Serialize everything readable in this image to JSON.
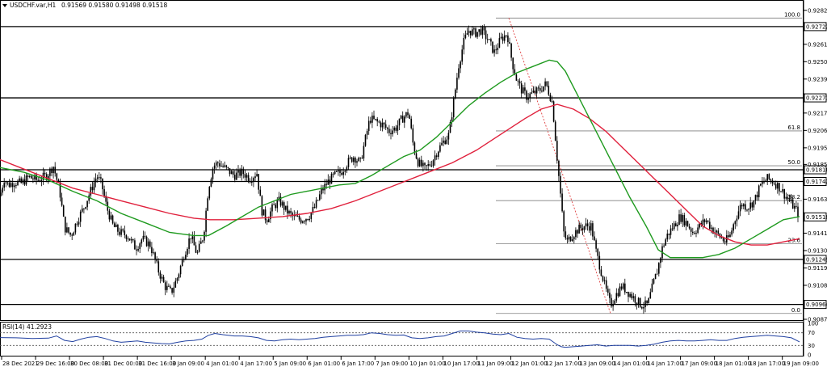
{
  "header": {
    "symbol": "USDCHF.var,H1",
    "ohlc": "0.91569 0.91580 0.91498 0.91518"
  },
  "rsi_header": "RSI(14) 41.2923",
  "chart_data": {
    "type": "candlestick",
    "symbol": "USDCHF.var",
    "timeframe": "H1",
    "ylim": [
      0.9087,
      0.9288
    ],
    "price_ticks": [
      "0.92825",
      "0.92610",
      "0.92500",
      "0.92390",
      "0.92175",
      "0.92065",
      "0.91955",
      "0.91850",
      "0.91630",
      "0.91415",
      "0.91305",
      "0.91195",
      "0.91085",
      "0.90870"
    ],
    "time_labels": [
      "28 Dec 2021",
      "29 Dec 16:00",
      "30 Dec 08:00",
      "31 Dec 00:00",
      "31 Dec 16:00",
      "3 Jan 09:00",
      "4 Jan 01:00",
      "4 Jan 17:00",
      "5 Jan 09:00",
      "6 Jan 01:00",
      "6 Jan 17:00",
      "7 Jan 09:00",
      "10 Jan 01:00",
      "10 Jan 17:00",
      "11 Jan 09:00",
      "12 Jan 01:00",
      "12 Jan 17:00",
      "13 Jan 09:00",
      "14 Jan 01:00",
      "14 Jan 17:00",
      "17 Jan 09:00",
      "18 Jan 01:00",
      "18 Jan 17:00",
      "19 Jan 09:00"
    ],
    "horizontal_levels": [
      {
        "price": 0.92722,
        "label": "0.92722"
      },
      {
        "price": 0.92271,
        "label": "0.92271"
      },
      {
        "price": 0.91816,
        "label": "0.91816"
      },
      {
        "price": 0.91742,
        "label": "0.91742"
      },
      {
        "price": 0.91249,
        "label": "0.91249"
      },
      {
        "price": 0.90964,
        "label": "0.90964"
      }
    ],
    "current_price": {
      "price": 0.91518,
      "label": "0.91518"
    },
    "fibonacci": {
      "high": 0.92776,
      "low": 0.90907,
      "levels": [
        {
          "ratio": 1.0,
          "label": "100.0"
        },
        {
          "ratio": 0.618,
          "label": "61.8"
        },
        {
          "ratio": 0.5,
          "label": "50.0"
        },
        {
          "ratio": 0.382,
          "label": "38.2"
        },
        {
          "ratio": 0.236,
          "label": "23.6"
        },
        {
          "ratio": 0.0,
          "label": "0.0"
        }
      ]
    },
    "price_path": [
      [
        0,
        0.9165
      ],
      [
        5,
        0.9176
      ],
      [
        10,
        0.9172
      ],
      [
        18,
        0.9174
      ],
      [
        26,
        0.9173
      ],
      [
        36,
        0.9177
      ],
      [
        46,
        0.9175
      ],
      [
        58,
        0.9178
      ],
      [
        66,
        0.9184
      ],
      [
        74,
        0.9168
      ],
      [
        80,
        0.9145
      ],
      [
        88,
        0.914
      ],
      [
        96,
        0.915
      ],
      [
        104,
        0.9158
      ],
      [
        112,
        0.9168
      ],
      [
        120,
        0.9178
      ],
      [
        126,
        0.9172
      ],
      [
        132,
        0.9158
      ],
      [
        140,
        0.9146
      ],
      [
        148,
        0.9142
      ],
      [
        158,
        0.914
      ],
      [
        168,
        0.9132
      ],
      [
        176,
        0.9138
      ],
      [
        186,
        0.9134
      ],
      [
        196,
        0.9118
      ],
      [
        204,
        0.9108
      ],
      [
        212,
        0.9104
      ],
      [
        220,
        0.9114
      ],
      [
        228,
        0.9128
      ],
      [
        236,
        0.914
      ],
      [
        244,
        0.9128
      ],
      [
        252,
        0.914
      ],
      [
        258,
        0.917
      ],
      [
        264,
        0.9184
      ],
      [
        270,
        0.9186
      ],
      [
        280,
        0.9182
      ],
      [
        290,
        0.9178
      ],
      [
        300,
        0.918
      ],
      [
        310,
        0.9176
      ],
      [
        318,
        0.918
      ],
      [
        324,
        0.9156
      ],
      [
        330,
        0.915
      ],
      [
        338,
        0.9158
      ],
      [
        346,
        0.9162
      ],
      [
        354,
        0.9156
      ],
      [
        362,
        0.9152
      ],
      [
        372,
        0.915
      ],
      [
        382,
        0.9152
      ],
      [
        390,
        0.9158
      ],
      [
        398,
        0.9168
      ],
      [
        406,
        0.9174
      ],
      [
        414,
        0.9178
      ],
      [
        422,
        0.918
      ],
      [
        430,
        0.9186
      ],
      [
        438,
        0.919
      ],
      [
        446,
        0.9186
      ],
      [
        452,
        0.92
      ],
      [
        458,
        0.9214
      ],
      [
        466,
        0.9212
      ],
      [
        474,
        0.921
      ],
      [
        482,
        0.9206
      ],
      [
        490,
        0.9208
      ],
      [
        498,
        0.9214
      ],
      [
        506,
        0.9218
      ],
      [
        512,
        0.9196
      ],
      [
        518,
        0.9186
      ],
      [
        526,
        0.9182
      ],
      [
        534,
        0.9186
      ],
      [
        542,
        0.9194
      ],
      [
        550,
        0.92
      ],
      [
        556,
        0.9204
      ],
      [
        562,
        0.9226
      ],
      [
        568,
        0.9248
      ],
      [
        574,
        0.9262
      ],
      [
        580,
        0.927
      ],
      [
        588,
        0.9268
      ],
      [
        596,
        0.927
      ],
      [
        604,
        0.9264
      ],
      [
        612,
        0.9256
      ],
      [
        620,
        0.9264
      ],
      [
        628,
        0.9268
      ],
      [
        634,
        0.925
      ],
      [
        640,
        0.9238
      ],
      [
        646,
        0.9232
      ],
      [
        652,
        0.9228
      ],
      [
        660,
        0.923
      ],
      [
        668,
        0.9232
      ],
      [
        676,
        0.9236
      ],
      [
        684,
        0.9224
      ],
      [
        690,
        0.9188
      ],
      [
        694,
        0.9166
      ],
      [
        698,
        0.9142
      ],
      [
        702,
        0.9136
      ],
      [
        708,
        0.914
      ],
      [
        716,
        0.9144
      ],
      [
        724,
        0.9146
      ],
      [
        732,
        0.9146
      ],
      [
        738,
        0.913
      ],
      [
        744,
        0.9118
      ],
      [
        750,
        0.9106
      ],
      [
        756,
        0.9096
      ],
      [
        762,
        0.9102
      ],
      [
        770,
        0.9108
      ],
      [
        778,
        0.9104
      ],
      [
        786,
        0.91
      ],
      [
        794,
        0.9096
      ],
      [
        802,
        0.9096
      ],
      [
        808,
        0.9108
      ],
      [
        814,
        0.9118
      ],
      [
        820,
        0.9132
      ],
      [
        826,
        0.914
      ],
      [
        834,
        0.9146
      ],
      [
        842,
        0.9152
      ],
      [
        850,
        0.9148
      ],
      [
        858,
        0.9142
      ],
      [
        866,
        0.9146
      ],
      [
        874,
        0.915
      ],
      [
        882,
        0.9144
      ],
      [
        890,
        0.914
      ],
      [
        898,
        0.9136
      ],
      [
        904,
        0.914
      ],
      [
        910,
        0.915
      ],
      [
        918,
        0.916
      ],
      [
        926,
        0.9158
      ],
      [
        934,
        0.9162
      ],
      [
        942,
        0.9172
      ],
      [
        950,
        0.9176
      ],
      [
        958,
        0.9174
      ],
      [
        966,
        0.917
      ],
      [
        974,
        0.9164
      ],
      [
        980,
        0.916
      ],
      [
        986,
        0.9156
      ],
      [
        990,
        0.91518
      ]
    ],
    "ma_green": [
      [
        0,
        0.9183
      ],
      [
        30,
        0.918
      ],
      [
        60,
        0.9175
      ],
      [
        90,
        0.9168
      ],
      [
        120,
        0.9162
      ],
      [
        150,
        0.9154
      ],
      [
        180,
        0.9148
      ],
      [
        210,
        0.9142
      ],
      [
        240,
        0.914
      ],
      [
        258,
        0.914
      ],
      [
        280,
        0.9146
      ],
      [
        300,
        0.9152
      ],
      [
        320,
        0.9158
      ],
      [
        340,
        0.9162
      ],
      [
        360,
        0.9166
      ],
      [
        380,
        0.9168
      ],
      [
        400,
        0.917
      ],
      [
        420,
        0.9172
      ],
      [
        440,
        0.9173
      ],
      [
        460,
        0.9178
      ],
      [
        480,
        0.9184
      ],
      [
        500,
        0.919
      ],
      [
        520,
        0.9194
      ],
      [
        540,
        0.9202
      ],
      [
        560,
        0.9212
      ],
      [
        580,
        0.9222
      ],
      [
        600,
        0.923
      ],
      [
        620,
        0.9237
      ],
      [
        640,
        0.9243
      ],
      [
        660,
        0.9247
      ],
      [
        680,
        0.9251
      ],
      [
        690,
        0.925
      ],
      [
        700,
        0.9244
      ],
      [
        720,
        0.9224
      ],
      [
        740,
        0.9204
      ],
      [
        760,
        0.9184
      ],
      [
        780,
        0.9164
      ],
      [
        800,
        0.9146
      ],
      [
        815,
        0.9131
      ],
      [
        830,
        0.9126
      ],
      [
        850,
        0.9126
      ],
      [
        870,
        0.9126
      ],
      [
        890,
        0.9128
      ],
      [
        910,
        0.9132
      ],
      [
        930,
        0.9138
      ],
      [
        950,
        0.9144
      ],
      [
        970,
        0.915
      ],
      [
        990,
        0.9152
      ]
    ],
    "ma_red": [
      [
        0,
        0.9188
      ],
      [
        30,
        0.9182
      ],
      [
        60,
        0.9176
      ],
      [
        90,
        0.917
      ],
      [
        120,
        0.9166
      ],
      [
        150,
        0.9162
      ],
      [
        180,
        0.9158
      ],
      [
        210,
        0.9154
      ],
      [
        240,
        0.9151
      ],
      [
        260,
        0.915
      ],
      [
        290,
        0.915
      ],
      [
        320,
        0.9151
      ],
      [
        350,
        0.9152
      ],
      [
        380,
        0.9154
      ],
      [
        410,
        0.9157
      ],
      [
        440,
        0.9162
      ],
      [
        470,
        0.9168
      ],
      [
        500,
        0.9174
      ],
      [
        530,
        0.918
      ],
      [
        560,
        0.9186
      ],
      [
        590,
        0.9194
      ],
      [
        620,
        0.9204
      ],
      [
        650,
        0.9214
      ],
      [
        670,
        0.922
      ],
      [
        690,
        0.9223
      ],
      [
        710,
        0.922
      ],
      [
        730,
        0.9214
      ],
      [
        750,
        0.9206
      ],
      [
        770,
        0.9196
      ],
      [
        790,
        0.9186
      ],
      [
        810,
        0.9176
      ],
      [
        830,
        0.9166
      ],
      [
        850,
        0.9156
      ],
      [
        870,
        0.9146
      ],
      [
        890,
        0.914
      ],
      [
        910,
        0.9136
      ],
      [
        930,
        0.9134
      ],
      [
        950,
        0.9134
      ],
      [
        970,
        0.9136
      ],
      [
        990,
        0.9138
      ]
    ],
    "rsi": {
      "period": 14,
      "value": 41.2923,
      "ylim": [
        0,
        100
      ],
      "levels": [
        70,
        30
      ],
      "ticks": [
        "100",
        "70",
        "30",
        "0"
      ],
      "path": [
        [
          0,
          55
        ],
        [
          20,
          54
        ],
        [
          40,
          52
        ],
        [
          60,
          53
        ],
        [
          70,
          60
        ],
        [
          80,
          46
        ],
        [
          90,
          42
        ],
        [
          100,
          50
        ],
        [
          110,
          56
        ],
        [
          120,
          58
        ],
        [
          130,
          52
        ],
        [
          140,
          44
        ],
        [
          150,
          40
        ],
        [
          160,
          42
        ],
        [
          170,
          44
        ],
        [
          180,
          40
        ],
        [
          190,
          38
        ],
        [
          200,
          36
        ],
        [
          210,
          35
        ],
        [
          220,
          40
        ],
        [
          230,
          44
        ],
        [
          240,
          46
        ],
        [
          250,
          50
        ],
        [
          258,
          62
        ],
        [
          266,
          68
        ],
        [
          276,
          64
        ],
        [
          290,
          60
        ],
        [
          300,
          60
        ],
        [
          310,
          58
        ],
        [
          320,
          54
        ],
        [
          330,
          46
        ],
        [
          340,
          44
        ],
        [
          350,
          48
        ],
        [
          360,
          50
        ],
        [
          370,
          48
        ],
        [
          380,
          50
        ],
        [
          390,
          52
        ],
        [
          400,
          56
        ],
        [
          410,
          58
        ],
        [
          420,
          60
        ],
        [
          430,
          62
        ],
        [
          440,
          62
        ],
        [
          450,
          64
        ],
        [
          460,
          70
        ],
        [
          470,
          68
        ],
        [
          480,
          64
        ],
        [
          490,
          62
        ],
        [
          500,
          63
        ],
        [
          510,
          54
        ],
        [
          520,
          52
        ],
        [
          530,
          54
        ],
        [
          540,
          58
        ],
        [
          550,
          60
        ],
        [
          560,
          68
        ],
        [
          570,
          76
        ],
        [
          580,
          76
        ],
        [
          590,
          72
        ],
        [
          600,
          70
        ],
        [
          610,
          66
        ],
        [
          620,
          64
        ],
        [
          630,
          68
        ],
        [
          640,
          56
        ],
        [
          650,
          52
        ],
        [
          660,
          50
        ],
        [
          670,
          52
        ],
        [
          680,
          50
        ],
        [
          690,
          32
        ],
        [
          695,
          26
        ],
        [
          700,
          24
        ],
        [
          710,
          26
        ],
        [
          720,
          28
        ],
        [
          730,
          30
        ],
        [
          740,
          32
        ],
        [
          750,
          28
        ],
        [
          760,
          30
        ],
        [
          770,
          30
        ],
        [
          780,
          30
        ],
        [
          790,
          28
        ],
        [
          800,
          30
        ],
        [
          810,
          34
        ],
        [
          820,
          40
        ],
        [
          830,
          44
        ],
        [
          840,
          46
        ],
        [
          850,
          44
        ],
        [
          860,
          44
        ],
        [
          870,
          46
        ],
        [
          880,
          48
        ],
        [
          890,
          46
        ],
        [
          900,
          46
        ],
        [
          910,
          52
        ],
        [
          920,
          56
        ],
        [
          930,
          58
        ],
        [
          940,
          60
        ],
        [
          950,
          62
        ],
        [
          960,
          60
        ],
        [
          970,
          58
        ],
        [
          980,
          54
        ],
        [
          990,
          41.3
        ]
      ]
    }
  }
}
